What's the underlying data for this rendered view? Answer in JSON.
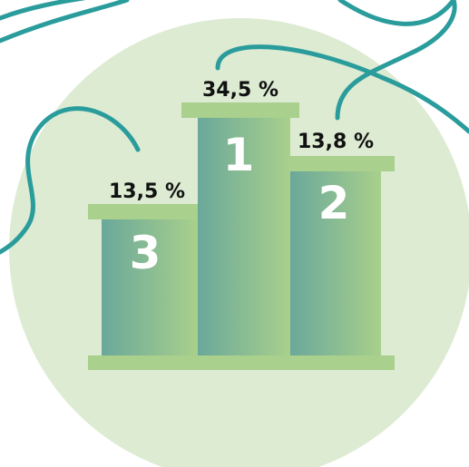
{
  "podiums": [
    {
      "rank": "1",
      "label": "34,5 %"
    },
    {
      "rank": "2",
      "label": "13,8 %"
    },
    {
      "rank": "3",
      "label": "13,5 %"
    }
  ]
}
